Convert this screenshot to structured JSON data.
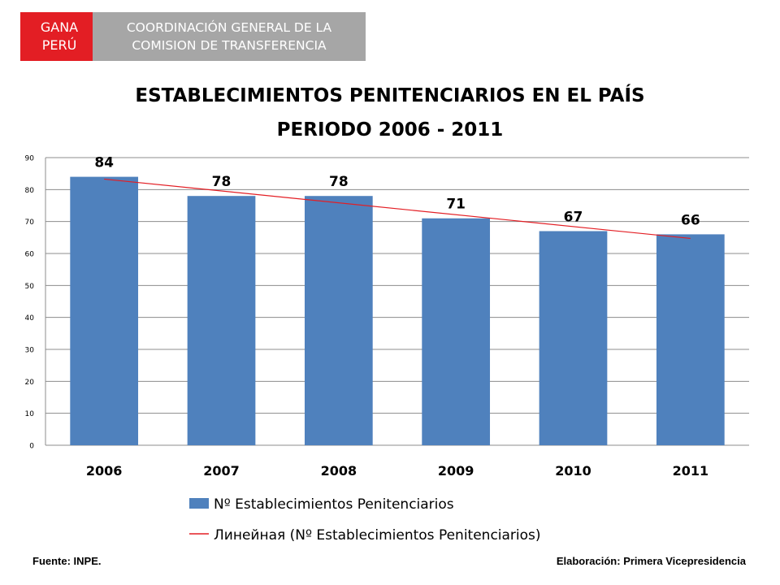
{
  "header": {
    "badge_line1": "GANA",
    "badge_line2": "PERÚ",
    "org_line1": "COORDINACIÓN GENERAL DE LA",
    "org_line2": "COMISION DE TRANSFERENCIA"
  },
  "chart_data": {
    "type": "bar",
    "title_line1": "ESTABLECIMIENTOS PENITENCIARIOS EN EL PAÍS",
    "title_line2": "PERIODO 2006 - 2011",
    "categories": [
      "2006",
      "2007",
      "2008",
      "2009",
      "2010",
      "2011"
    ],
    "series": [
      {
        "name": "Nº Establecimientos Penitenciarios",
        "values": [
          84,
          78,
          78,
          71,
          67,
          66
        ],
        "color": "#4f81bd"
      }
    ],
    "trendline": {
      "name": "Линейная (Nº Establecimientos Penitenciarios)",
      "type": "linear",
      "color": "#e31e24"
    },
    "ylim": [
      0,
      90
    ],
    "yticks": [
      0,
      10,
      20,
      30,
      40,
      50,
      60,
      70,
      80,
      90
    ],
    "grid": true,
    "legend": "bottom"
  },
  "footer": {
    "source": "Fuente: INPE.",
    "credit": "Elaboración: Primera Vicepresidencia"
  }
}
